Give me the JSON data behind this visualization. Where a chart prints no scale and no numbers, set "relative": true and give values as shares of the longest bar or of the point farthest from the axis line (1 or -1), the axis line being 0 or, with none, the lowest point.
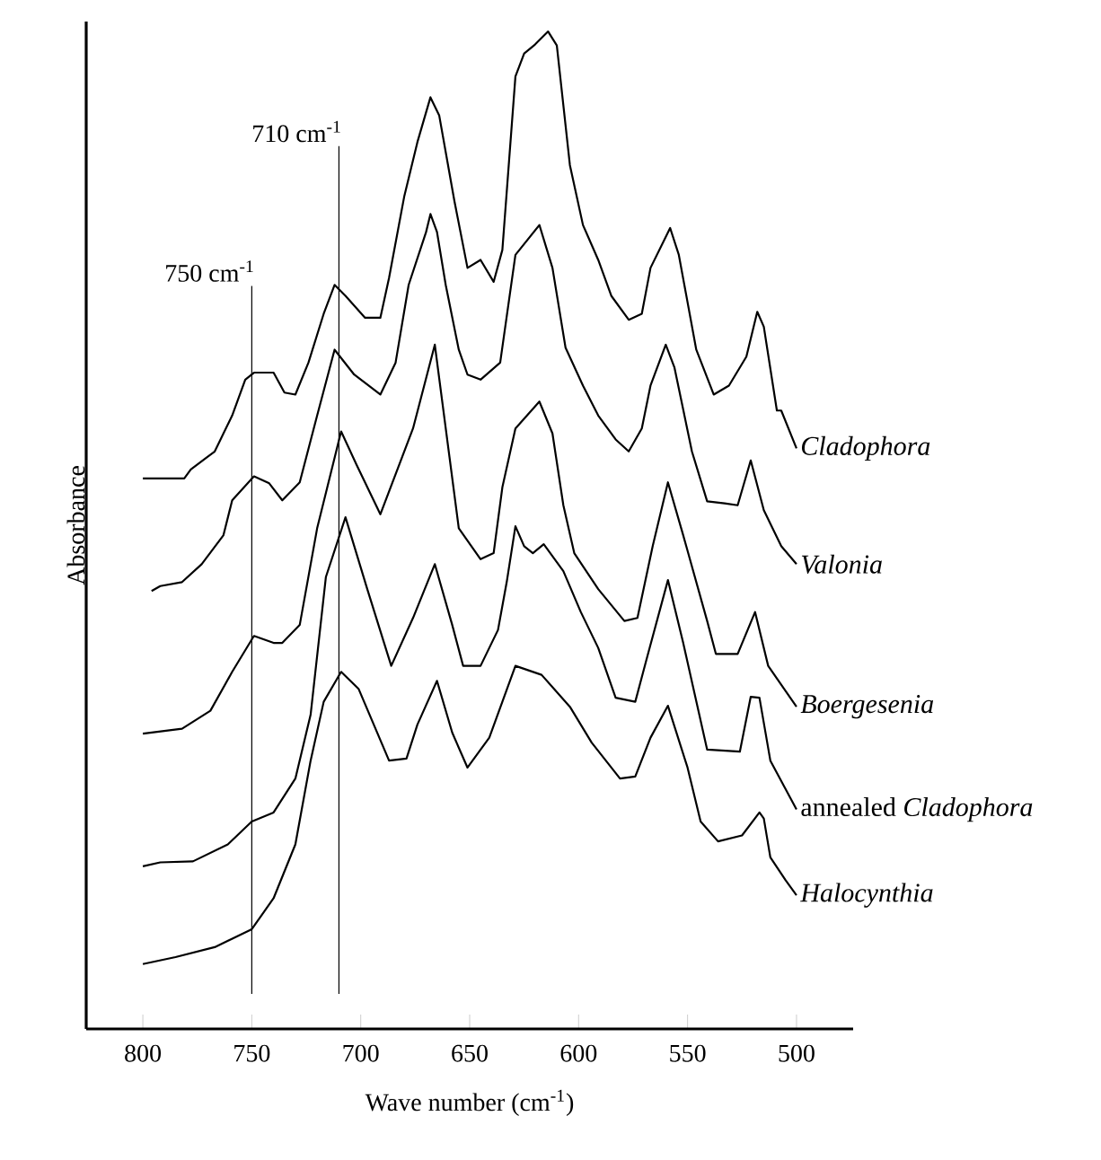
{
  "chart_data": {
    "type": "line",
    "relative": true,
    "xlabel": "Wave number (cm$^{-1}$)",
    "ylabel": "Absorbance",
    "xlim": [
      826,
      474
    ],
    "xticks": [
      800,
      750,
      700,
      650,
      600,
      550,
      500
    ],
    "legend": false,
    "grid": false,
    "marker": "none",
    "line_style": "solid",
    "ref_lines": [
      {
        "axis": "x",
        "value": 750,
        "label": "750 cm$^{-1}$"
      },
      {
        "axis": "x",
        "value": 710,
        "label": "710 cm$^{-1}$"
      }
    ],
    "series": [
      {
        "name": "*Cladophora*",
        "color": "#000000",
        "x": [
          800,
          781,
          778,
          767,
          759,
          753,
          749,
          740,
          735,
          730,
          724,
          717,
          712,
          707,
          698,
          691,
          687,
          680,
          674,
          668,
          664,
          657,
          651,
          645,
          639,
          635,
          629,
          625,
          620,
          614,
          610,
          604,
          598,
          591,
          585,
          577,
          571,
          567,
          558,
          554,
          546,
          538,
          531,
          523,
          518,
          515,
          509,
          507,
          500
        ],
        "values": [
          0.552,
          0.552,
          0.561,
          0.579,
          0.615,
          0.651,
          0.658,
          0.658,
          0.638,
          0.636,
          0.668,
          0.717,
          0.746,
          0.735,
          0.713,
          0.713,
          0.753,
          0.835,
          0.889,
          0.934,
          0.916,
          0.83,
          0.763,
          0.771,
          0.749,
          0.781,
          0.955,
          0.978,
          0.987,
          1,
          0.986,
          0.866,
          0.806,
          0.771,
          0.735,
          0.711,
          0.717,
          0.763,
          0.803,
          0.776,
          0.681,
          0.636,
          0.645,
          0.674,
          0.719,
          0.704,
          0.62,
          0.62,
          0.582
        ]
      },
      {
        "name": "*Valonia*",
        "color": "#000000",
        "x": [
          796,
          792,
          782,
          773,
          763,
          759,
          749,
          742,
          736,
          728,
          720,
          712,
          703,
          691,
          684,
          678,
          670,
          668,
          665,
          661,
          655,
          651,
          645,
          636,
          629,
          618,
          612,
          606,
          598,
          591,
          583,
          577,
          571,
          567,
          560,
          556,
          548,
          541,
          533,
          527,
          521,
          515,
          507,
          500
        ],
        "values": [
          0.439,
          0.444,
          0.448,
          0.466,
          0.495,
          0.53,
          0.554,
          0.547,
          0.53,
          0.548,
          0.615,
          0.681,
          0.656,
          0.636,
          0.668,
          0.746,
          0.799,
          0.817,
          0.799,
          0.746,
          0.681,
          0.656,
          0.651,
          0.668,
          0.776,
          0.806,
          0.763,
          0.683,
          0.645,
          0.615,
          0.591,
          0.579,
          0.602,
          0.645,
          0.686,
          0.663,
          0.579,
          0.529,
          0.527,
          0.525,
          0.57,
          0.52,
          0.484,
          0.466
        ]
      },
      {
        "name": "*Boergesenia*",
        "color": "#000000",
        "x": [
          800,
          782,
          769,
          759,
          749,
          740,
          736,
          728,
          720,
          709,
          702,
          691,
          676,
          666,
          655,
          645,
          639,
          635,
          629,
          618,
          612,
          607,
          602,
          591,
          579,
          573,
          566,
          559,
          552,
          541,
          537,
          527,
          519,
          513,
          500
        ],
        "values": [
          0.296,
          0.301,
          0.319,
          0.358,
          0.394,
          0.387,
          0.387,
          0.405,
          0.502,
          0.599,
          0.566,
          0.516,
          0.602,
          0.686,
          0.502,
          0.471,
          0.477,
          0.543,
          0.602,
          0.629,
          0.597,
          0.525,
          0.477,
          0.441,
          0.409,
          0.412,
          0.484,
          0.548,
          0.495,
          0.409,
          0.376,
          0.376,
          0.418,
          0.364,
          0.323
        ]
      },
      {
        "name": "annealed *Cladophora*",
        "color": "#000000",
        "x": [
          800,
          792,
          777,
          761,
          750,
          740,
          730,
          723,
          716,
          707,
          697,
          686,
          676,
          666,
          658,
          653,
          645,
          637,
          633,
          629,
          625,
          621,
          616,
          607,
          599,
          591,
          583,
          574,
          569,
          559,
          552,
          541,
          526,
          521,
          517,
          512,
          500
        ],
        "values": [
          0.163,
          0.167,
          0.168,
          0.185,
          0.208,
          0.217,
          0.251,
          0.315,
          0.453,
          0.513,
          0.441,
          0.364,
          0.412,
          0.466,
          0.405,
          0.364,
          0.364,
          0.4,
          0.448,
          0.504,
          0.484,
          0.477,
          0.486,
          0.459,
          0.418,
          0.382,
          0.332,
          0.328,
          0.369,
          0.45,
          0.387,
          0.28,
          0.278,
          0.333,
          0.332,
          0.269,
          0.22
        ]
      },
      {
        "name": "*Halocynthia*",
        "color": "#000000",
        "x": [
          800,
          785,
          767,
          750,
          740,
          730,
          723,
          717,
          709,
          701,
          687,
          679,
          674,
          665,
          658,
          651,
          641,
          635,
          629,
          617,
          604,
          594,
          581,
          574,
          567,
          559,
          550,
          544,
          536,
          525,
          517,
          515,
          512,
          505,
          500
        ],
        "values": [
          0.065,
          0.072,
          0.082,
          0.1,
          0.131,
          0.185,
          0.269,
          0.328,
          0.358,
          0.341,
          0.269,
          0.271,
          0.305,
          0.349,
          0.297,
          0.262,
          0.292,
          0.328,
          0.364,
          0.355,
          0.323,
          0.287,
          0.251,
          0.253,
          0.292,
          0.324,
          0.262,
          0.208,
          0.188,
          0.194,
          0.217,
          0.211,
          0.172,
          0.149,
          0.134
        ]
      }
    ]
  }
}
